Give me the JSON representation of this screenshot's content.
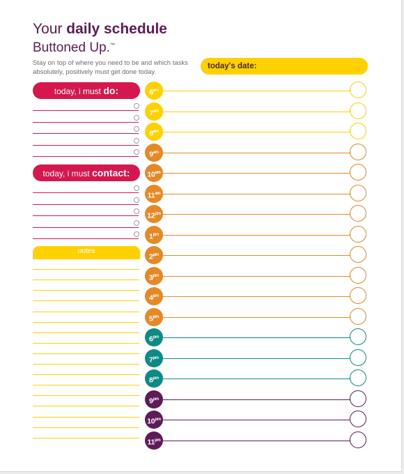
{
  "header": {
    "title_prefix": "Your ",
    "title_bold": "daily schedule",
    "subtitle": "Buttoned Up.",
    "trademark": "™",
    "intro": "Stay on top of where you need to be and which tasks absolutely, positively must get done today."
  },
  "date_field": {
    "label": "today's date:"
  },
  "do_section": {
    "prefix": "today, i must ",
    "keyword": "do:",
    "line_count": 5,
    "accent": "#d5174e"
  },
  "contact_section": {
    "prefix": "today, i must ",
    "keyword": "contact:",
    "line_count": 5,
    "accent": "#d5174e"
  },
  "notes_section": {
    "label": "notes",
    "line_count": 18,
    "accent": "#ffd100"
  },
  "schedule": [
    {
      "hour": "6",
      "period": "am",
      "color": "#ffd100"
    },
    {
      "hour": "7",
      "period": "am",
      "color": "#ffd100"
    },
    {
      "hour": "8",
      "period": "am",
      "color": "#ffd100"
    },
    {
      "hour": "9",
      "period": "am",
      "color": "#e58826"
    },
    {
      "hour": "10",
      "period": "am",
      "color": "#e58826"
    },
    {
      "hour": "11",
      "period": "am",
      "color": "#e58826"
    },
    {
      "hour": "12",
      "period": "pm",
      "color": "#e58826"
    },
    {
      "hour": "1",
      "period": "pm",
      "color": "#e58826"
    },
    {
      "hour": "2",
      "period": "pm",
      "color": "#e58826"
    },
    {
      "hour": "3",
      "period": "pm",
      "color": "#e58826"
    },
    {
      "hour": "4",
      "period": "pm",
      "color": "#e58826"
    },
    {
      "hour": "5",
      "period": "pm",
      "color": "#e58826"
    },
    {
      "hour": "6",
      "period": "pm",
      "color": "#0e8a84"
    },
    {
      "hour": "7",
      "period": "pm",
      "color": "#0e8a84"
    },
    {
      "hour": "8",
      "period": "pm",
      "color": "#0e8a84"
    },
    {
      "hour": "9",
      "period": "pm",
      "color": "#5e1a59"
    },
    {
      "hour": "10",
      "period": "pm",
      "color": "#5e1a59"
    },
    {
      "hour": "11",
      "period": "pm",
      "color": "#5e1a59"
    }
  ]
}
